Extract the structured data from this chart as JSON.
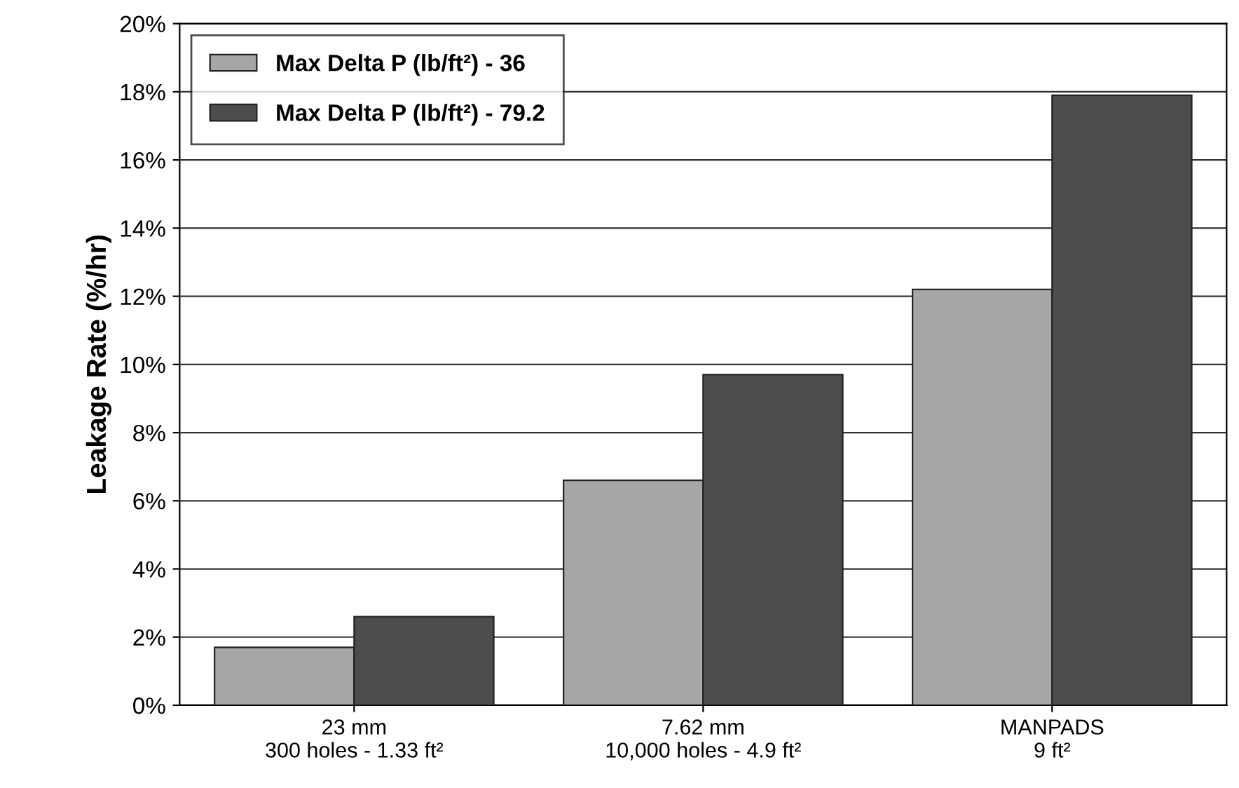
{
  "chart_data": {
    "type": "bar",
    "ylabel": "Leakage Rate (%/hr)",
    "categories": [
      "23 mm\n300 holes - 1.33 ft²",
      "7.62 mm\n10,000 holes - 4.9 ft²",
      "MANPADS\n9 ft²"
    ],
    "series": [
      {
        "name": "Max Delta P (lb/ft²) - 36",
        "color": "#a6a6a6",
        "values": [
          1.7,
          6.6,
          12.2
        ]
      },
      {
        "name": "Max Delta P (lb/ft²) - 79.2",
        "color": "#4d4d4d",
        "values": [
          2.6,
          9.7,
          17.9
        ]
      }
    ],
    "ylim": [
      0,
      20
    ],
    "yticks": [
      {
        "value": 0,
        "label": "0%"
      },
      {
        "value": 2,
        "label": "2%"
      },
      {
        "value": 4,
        "label": "4%"
      },
      {
        "value": 6,
        "label": "6%"
      },
      {
        "value": 8,
        "label": "8%"
      },
      {
        "value": 10,
        "label": "10%"
      },
      {
        "value": 12,
        "label": "12%"
      },
      {
        "value": 14,
        "label": "14%"
      },
      {
        "value": 16,
        "label": "16%"
      },
      {
        "value": 18,
        "label": "18%"
      },
      {
        "value": 20,
        "label": "20%"
      }
    ],
    "grid": "y",
    "legend": "top left"
  }
}
